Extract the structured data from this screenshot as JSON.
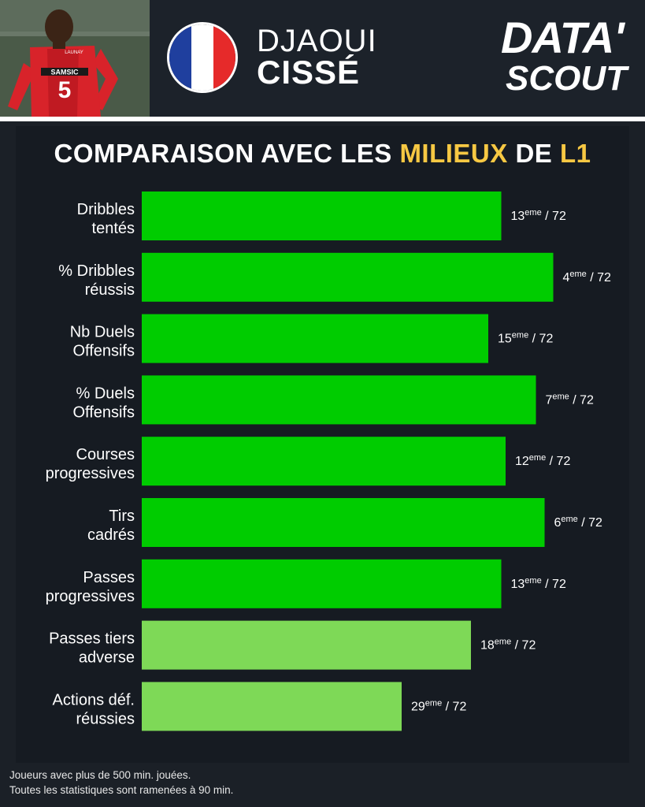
{
  "header": {
    "first_name": "DJAOUI",
    "last_name": "CISSÉ",
    "logo_line1": "DATA'",
    "logo_line2": "SCOUT",
    "jersey_text": "SAMSIC",
    "sponsor_text": "LAUNAY",
    "jersey_number": "5",
    "flag_colors": [
      "#1f3f9e",
      "#ffffff",
      "#e62a2a"
    ]
  },
  "title": {
    "part1": "COMPARAISON AVEC LES ",
    "highlight": "MILIEUX",
    "part2": " DE ",
    "league": "L1"
  },
  "chart_data": {
    "type": "bar",
    "orientation": "horizontal",
    "total": 72,
    "rank_suffix": "eme",
    "categories": [
      [
        "Dribbles",
        "tentés"
      ],
      [
        "% Dribbles",
        "réussis"
      ],
      [
        "Nb Duels",
        "Offensifs"
      ],
      [
        "% Duels",
        "Offensifs"
      ],
      [
        "Courses",
        "progressives"
      ],
      [
        "Tirs",
        "cadrés"
      ],
      [
        "Passes",
        "progressives"
      ],
      [
        "Passes tiers",
        "adverse"
      ],
      [
        "Actions déf.",
        "réussies"
      ]
    ],
    "ranks": [
      13,
      4,
      15,
      7,
      12,
      6,
      13,
      18,
      29
    ],
    "values": [
      0.83,
      0.95,
      0.8,
      0.91,
      0.84,
      0.93,
      0.83,
      0.76,
      0.6
    ],
    "colors": [
      "#00cc00",
      "#00cc00",
      "#00cc00",
      "#00cc00",
      "#00cc00",
      "#00cc00",
      "#00cc00",
      "#7ed957",
      "#7ed957"
    ],
    "label_color": "#ffffff"
  },
  "footer": {
    "line1": "Joueurs avec plus de 500 min. jouées.",
    "line2": "Toutes les statistiques sont ramenées à 90 min."
  }
}
